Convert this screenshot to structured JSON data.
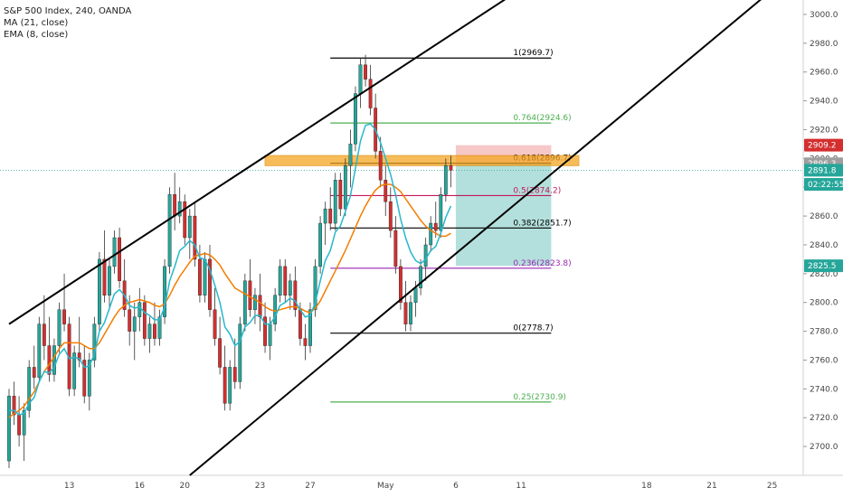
{
  "legend": {
    "title": "S&P 500 Index, 240, OANDA",
    "ma": "MA (21, close)",
    "ema": "EMA (8, close)"
  },
  "colors": {
    "up": "#26a69a",
    "down": "#d32f2f",
    "ma": "#26b8cc",
    "ema": "#f57c00",
    "fib_black": "#000000",
    "fib_green": "#4caf50",
    "fib_magenta": "#c2185b",
    "fib_purple": "#9c27b0",
    "zone": "#f5a623",
    "stop": "#ef9a9a",
    "target": "#80cbc4",
    "price_line": "#26a69a",
    "badge_red": "#d32f2f",
    "badge_teal": "#26a69a",
    "badge_dark": "#26a69a",
    "badge_grey": "#9e9e9e"
  },
  "chart_data": {
    "type": "candlestick",
    "title": "S&P 500 Index, 240, OANDA",
    "ylim": [
      2680,
      3010
    ],
    "yticks": [
      2700,
      2720,
      2740,
      2760,
      2780,
      2800,
      2820,
      2840,
      2860,
      2880,
      2900,
      2920,
      2940,
      2960,
      2980,
      3000
    ],
    "xticks": [
      "13",
      "16",
      "20",
      "23",
      "27",
      "May",
      "6",
      "11",
      "18",
      "21",
      "25"
    ],
    "candles": [
      [
        2690,
        2740,
        2685,
        2735
      ],
      [
        2735,
        2745,
        2715,
        2722
      ],
      [
        2722,
        2735,
        2700,
        2708
      ],
      [
        2708,
        2730,
        2690,
        2725
      ],
      [
        2725,
        2760,
        2720,
        2755
      ],
      [
        2755,
        2770,
        2740,
        2748
      ],
      [
        2748,
        2790,
        2745,
        2785
      ],
      [
        2785,
        2805,
        2760,
        2770
      ],
      [
        2770,
        2790,
        2745,
        2750
      ],
      [
        2750,
        2775,
        2745,
        2770
      ],
      [
        2770,
        2800,
        2765,
        2795
      ],
      [
        2795,
        2820,
        2780,
        2785
      ],
      [
        2785,
        2790,
        2735,
        2740
      ],
      [
        2740,
        2770,
        2735,
        2765
      ],
      [
        2765,
        2790,
        2755,
        2760
      ],
      [
        2760,
        2770,
        2730,
        2735
      ],
      [
        2735,
        2765,
        2725,
        2760
      ],
      [
        2760,
        2790,
        2755,
        2785
      ],
      [
        2785,
        2835,
        2780,
        2830
      ],
      [
        2830,
        2850,
        2800,
        2805
      ],
      [
        2805,
        2830,
        2795,
        2825
      ],
      [
        2825,
        2850,
        2820,
        2845
      ],
      [
        2845,
        2852,
        2810,
        2815
      ],
      [
        2815,
        2830,
        2790,
        2795
      ],
      [
        2795,
        2805,
        2770,
        2780
      ],
      [
        2780,
        2800,
        2760,
        2790
      ],
      [
        2790,
        2810,
        2780,
        2800
      ],
      [
        2800,
        2805,
        2770,
        2775
      ],
      [
        2775,
        2790,
        2765,
        2785
      ],
      [
        2785,
        2800,
        2770,
        2775
      ],
      [
        2775,
        2795,
        2770,
        2790
      ],
      [
        2790,
        2830,
        2785,
        2825
      ],
      [
        2825,
        2880,
        2820,
        2875
      ],
      [
        2875,
        2890,
        2850,
        2860
      ],
      [
        2860,
        2880,
        2855,
        2870
      ],
      [
        2870,
        2875,
        2840,
        2845
      ],
      [
        2845,
        2865,
        2830,
        2860
      ],
      [
        2860,
        2870,
        2825,
        2830
      ],
      [
        2830,
        2840,
        2800,
        2805
      ],
      [
        2805,
        2835,
        2800,
        2830
      ],
      [
        2830,
        2840,
        2790,
        2795
      ],
      [
        2795,
        2810,
        2770,
        2775
      ],
      [
        2775,
        2790,
        2750,
        2755
      ],
      [
        2755,
        2770,
        2725,
        2730
      ],
      [
        2730,
        2760,
        2725,
        2755
      ],
      [
        2755,
        2775,
        2740,
        2745
      ],
      [
        2745,
        2790,
        2740,
        2785
      ],
      [
        2785,
        2820,
        2780,
        2815
      ],
      [
        2815,
        2830,
        2790,
        2795
      ],
      [
        2795,
        2810,
        2785,
        2805
      ],
      [
        2805,
        2820,
        2780,
        2790
      ],
      [
        2790,
        2800,
        2765,
        2770
      ],
      [
        2770,
        2790,
        2760,
        2785
      ],
      [
        2785,
        2810,
        2780,
        2805
      ],
      [
        2805,
        2830,
        2800,
        2825
      ],
      [
        2825,
        2830,
        2800,
        2805
      ],
      [
        2805,
        2820,
        2795,
        2815
      ],
      [
        2815,
        2825,
        2790,
        2795
      ],
      [
        2795,
        2800,
        2770,
        2775
      ],
      [
        2775,
        2785,
        2760,
        2770
      ],
      [
        2770,
        2800,
        2765,
        2795
      ],
      [
        2795,
        2830,
        2790,
        2825
      ],
      [
        2825,
        2860,
        2820,
        2855
      ],
      [
        2855,
        2870,
        2840,
        2865
      ],
      [
        2865,
        2880,
        2850,
        2855
      ],
      [
        2855,
        2890,
        2850,
        2885
      ],
      [
        2885,
        2890,
        2860,
        2865
      ],
      [
        2865,
        2900,
        2860,
        2895
      ],
      [
        2895,
        2920,
        2880,
        2910
      ],
      [
        2910,
        2950,
        2905,
        2945
      ],
      [
        2945,
        2970,
        2935,
        2965
      ],
      [
        2965,
        2972,
        2950,
        2955
      ],
      [
        2955,
        2965,
        2930,
        2935
      ],
      [
        2935,
        2945,
        2900,
        2905
      ],
      [
        2905,
        2915,
        2880,
        2885
      ],
      [
        2885,
        2895,
        2860,
        2870
      ],
      [
        2870,
        2880,
        2845,
        2850
      ],
      [
        2850,
        2860,
        2820,
        2825
      ],
      [
        2825,
        2830,
        2795,
        2800
      ],
      [
        2800,
        2815,
        2780,
        2785
      ],
      [
        2785,
        2805,
        2780,
        2800
      ],
      [
        2800,
        2815,
        2790,
        2810
      ],
      [
        2810,
        2830,
        2805,
        2825
      ],
      [
        2825,
        2845,
        2815,
        2840
      ],
      [
        2840,
        2860,
        2835,
        2855
      ],
      [
        2855,
        2870,
        2845,
        2850
      ],
      [
        2850,
        2880,
        2845,
        2875
      ],
      [
        2875,
        2900,
        2870,
        2895
      ],
      [
        2895,
        2902,
        2880,
        2891.8
      ]
    ],
    "ma21": [
      2720,
      2723,
      2725,
      2728,
      2733,
      2738,
      2745,
      2752,
      2757,
      2762,
      2768,
      2772,
      2772,
      2772,
      2772,
      2770,
      2768,
      2768,
      2772,
      2778,
      2784,
      2790,
      2795,
      2798,
      2800,
      2801,
      2802,
      2801,
      2800,
      2798,
      2797,
      2799,
      2805,
      2812,
      2818,
      2823,
      2828,
      2832,
      2833,
      2834,
      2833,
      2830,
      2826,
      2820,
      2815,
      2810,
      2808,
      2806,
      2804,
      2802,
      2800,
      2797,
      2795,
      2794,
      2795,
      2796,
      2797,
      2797,
      2796,
      2794,
      2793,
      2796,
      2801,
      2808,
      2815,
      2822,
      2829,
      2836,
      2844,
      2852,
      2860,
      2867,
      2873,
      2878,
      2881,
      2882,
      2882,
      2880,
      2877,
      2872,
      2867,
      2862,
      2857,
      2853,
      2850,
      2848,
      2846,
      2846,
      2848
    ],
    "ema8": [
      2725,
      2725,
      2722,
      2723,
      2730,
      2734,
      2745,
      2752,
      2751,
      2755,
      2764,
      2768,
      2761,
      2762,
      2761,
      2755,
      2756,
      2764,
      2780,
      2786,
      2796,
      2806,
      2809,
      2805,
      2798,
      2796,
      2797,
      2793,
      2791,
      2788,
      2788,
      2797,
      2815,
      2825,
      2836,
      2839,
      2843,
      2840,
      2831,
      2830,
      2823,
      2812,
      2800,
      2783,
      2778,
      2770,
      2773,
      2783,
      2786,
      2791,
      2791,
      2785,
      2785,
      2790,
      2798,
      2800,
      2803,
      2801,
      2795,
      2790,
      2791,
      2800,
      2815,
      2829,
      2836,
      2849,
      2853,
      2863,
      2874,
      2893,
      2912,
      2923,
      2924,
      2920,
      2911,
      2900,
      2889,
      2875,
      2858,
      2845,
      2835,
      2829,
      2827,
      2830,
      2836,
      2839,
      2848,
      2859,
      2867
    ],
    "fib_levels": [
      {
        "label": "1(2969.7)",
        "value": 2969.7,
        "color": "fib_black"
      },
      {
        "label": "0.764(2924.6)",
        "value": 2924.6,
        "color": "fib_green"
      },
      {
        "label": "0.618(2896.7)",
        "value": 2896.7,
        "color": "fib_black"
      },
      {
        "label": "0.5(2874.2)",
        "value": 2874.2,
        "color": "fib_magenta"
      },
      {
        "label": "0.382(2851.7)",
        "value": 2851.7,
        "color": "fib_black"
      },
      {
        "label": "0.236(2823.8)",
        "value": 2823.8,
        "color": "fib_purple"
      },
      {
        "label": "0(2778.7)",
        "value": 2778.7,
        "color": "fib_black"
      },
      {
        "label": "0.25(2730.9)",
        "value": 2730.9,
        "color": "fib_green"
      }
    ],
    "zone": {
      "top": 2902,
      "bottom": 2895
    },
    "position": {
      "entry": 2896.3,
      "stop": 2909.2,
      "target": 2825.5
    },
    "channel_upper": [
      [
        0,
        2785
      ],
      [
        103,
        3020
      ]
    ],
    "channel_lower": [
      [
        36,
        2680
      ],
      [
        151,
        3014
      ]
    ],
    "last_price": 2891.8,
    "price_badges": [
      {
        "text": "2909.2",
        "value": 2909.2,
        "color": "badge_red"
      },
      {
        "text": "2896.3",
        "value": 2896.3,
        "color": "badge_grey"
      },
      {
        "text": "2891.8",
        "value": 2891.8,
        "color": "badge_teal"
      },
      {
        "text": "02:22:55",
        "value": 2882,
        "color": "badge_dark"
      },
      {
        "text": "2825.5",
        "value": 2825.5,
        "color": "badge_teal"
      }
    ]
  }
}
